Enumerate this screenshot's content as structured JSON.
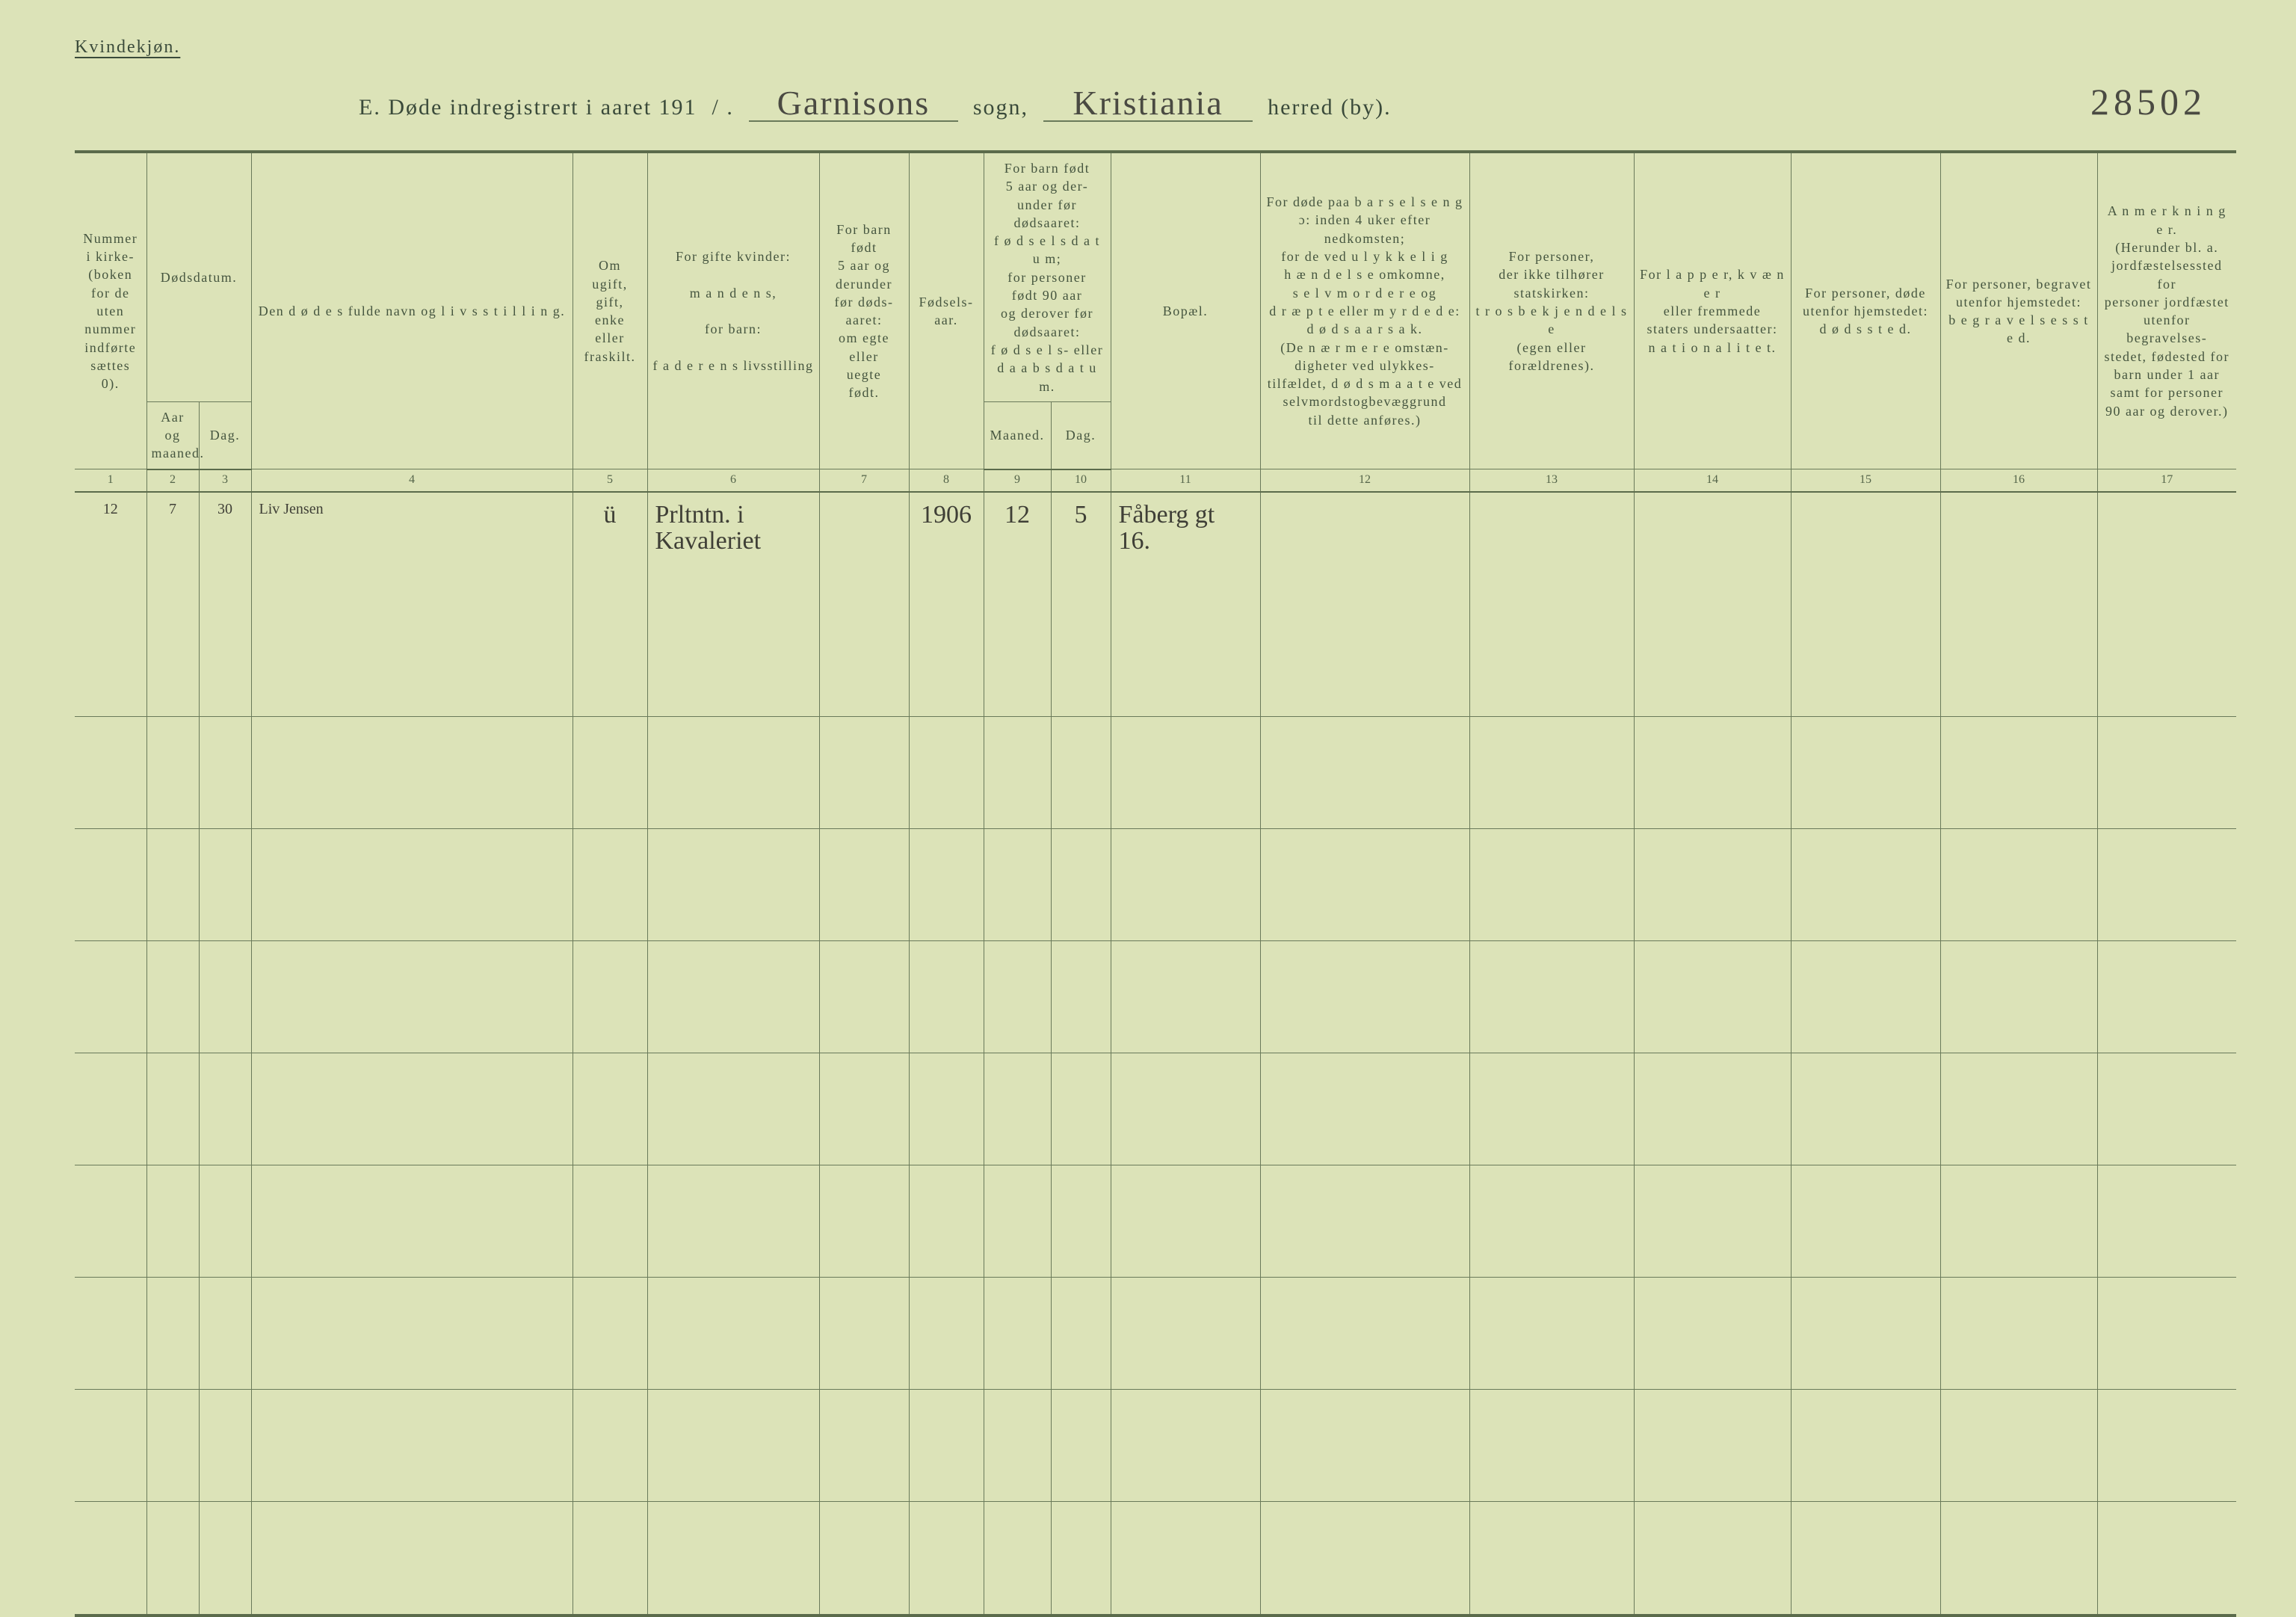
{
  "top_label": "Kvindekjøn.",
  "title": {
    "prefix": "E.  Døde indregistrert i aaret 191",
    "year_suffix": "/ .",
    "sogn_value": "Garnisons",
    "sogn_label": "sogn,",
    "herred_value": "Kristiania",
    "herred_label": "herred (by).",
    "page_number": "28502"
  },
  "headers": {
    "c1": "Nummer\ni kirke-\n(boken\nfor de\nuten\nnummer\nindførte\nsættes\n0).",
    "c2_group": "Dødsdatum.",
    "c2a": "Aar\nog\nmaaned.",
    "c2b": "Dag.",
    "c4": "Den  d ø d e s  fulde navn og  l i v s s t i l l i n g.",
    "c5": "Om\nugift,\ngift,\nenke\neller\nfraskilt.",
    "c6": "For gifte kvinder:\n\nm a n d e n s,\n\nfor barn:\n\nf a d e r e n s  livsstilling",
    "c7": "For barn\nfødt\n5 aar og\nderunder\nfør døds-\naaret:\nom egte\neller\nuegte\nfødt.",
    "c8": "Fødsels-\naar.",
    "c9_group": "For barn født\n5 aar og der-\nunder før\ndødsaaret:\nf ø d s e l s d a t u m;\nfor personer\nfødt 90 aar\nog derover før\ndødsaaret:\nf ø d s e l s-  eller\nd a a b s d a t u m.",
    "c9a": "Maaned.",
    "c9b": "Dag.",
    "c11": "Bopæl.",
    "c12": "For døde paa  b a r s e l s e n g\nɔ: inden 4 uker efter\nnedkomsten;\nfor de ved  u l y k k e l i g\nh æ n d e l s e  omkomne,\ns e l v m o r d e r e  og\nd r æ p t e  eller  m y r d e d e:\nd ø d s a a r s a k.\n(De  n æ r m e r e  omstæn-\ndigheter ved ulykkes-\ntilfældet,  d ø d s m a a t e  ved\nselvmordstogbevæggrund\ntil dette anføres.)",
    "c13": "For personer,\nder ikke tilhører\nstatskirken:\nt r o s b e k j e n d e l s e\n(egen eller forældrenes).",
    "c14": "For  l a p p e r,  k v æ n e r\neller fremmede\nstaters undersaatter:\nn a t i o n a l i t e t.",
    "c15": "For personer, døde\nutenfor hjemstedet:\nd ø d s s t e d.",
    "c16": "For personer, begravet\nutenfor hjemstedet:\nb e g r a v e l s e s s t e d.",
    "c17": "A n m e r k n i n g e r.\n(Herunder bl. a.\njordfæstelsessted for\npersoner jordfæstet\nutenfor begravelses-\nstedet, fødested for\nbarn under 1 aar\nsamt for personer\n90 aar og derover.)"
  },
  "colnums": [
    "1",
    "2",
    "3",
    "4",
    "5",
    "6",
    "7",
    "8",
    "9",
    "10",
    "11",
    "12",
    "13",
    "14",
    "15",
    "16",
    "17"
  ],
  "row": {
    "c1": "12",
    "c2": "7",
    "c3": "30",
    "c4": "Liv Jensen",
    "c5": "ü",
    "c6": "Prltntn. i\nKavaleriet",
    "c7": "",
    "c8": "1906",
    "c9": "12",
    "c10": "5",
    "c11": "Fåberg gt\n16.",
    "c12": "",
    "c13": "",
    "c14": "",
    "c15": "",
    "c16": "",
    "c17": ""
  },
  "blank_row_count": 9
}
